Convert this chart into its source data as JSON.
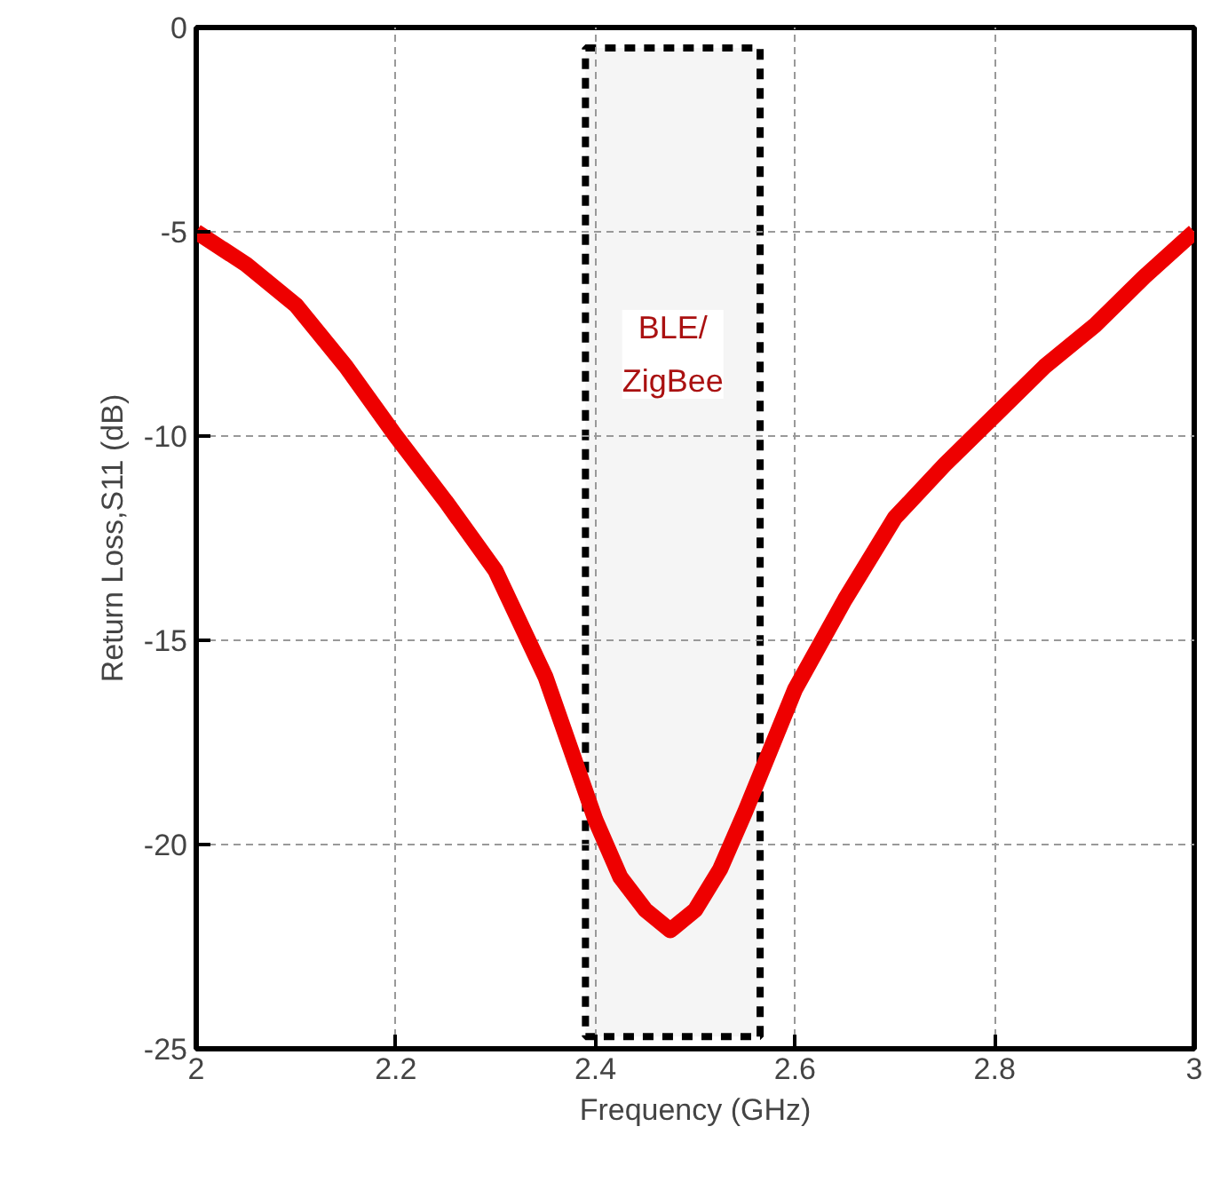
{
  "chart_data": {
    "type": "line",
    "xlabel": "Frequency (GHz)",
    "ylabel": "Return Loss,S11 (dB)",
    "x": [
      2.0,
      2.05,
      2.1,
      2.15,
      2.2,
      2.25,
      2.3,
      2.35,
      2.4,
      2.425,
      2.45,
      2.475,
      2.5,
      2.525,
      2.55,
      2.6,
      2.65,
      2.7,
      2.75,
      2.8,
      2.85,
      2.9,
      2.95,
      3.0
    ],
    "series": [
      {
        "color": "#ee0000",
        "values": [
          -5,
          -5.8,
          -6.8,
          -8.3,
          -10,
          -11.6,
          -13.3,
          -15.9,
          -19.4,
          -20.8,
          -21.6,
          -22.1,
          -21.6,
          -20.6,
          -19.2,
          -16.2,
          -14.0,
          -12.0,
          -10.7,
          -9.5,
          -8.3,
          -7.3,
          -6.1,
          -5
        ]
      }
    ],
    "xlim": [
      2,
      3
    ],
    "xticks": [
      2,
      2.2,
      2.4,
      2.6,
      2.8,
      3
    ],
    "ylim": [
      -25,
      0
    ],
    "yticks": [
      -25,
      -20,
      -15,
      -10,
      -5,
      0
    ],
    "grid": true,
    "marker": "none",
    "line_style": "solid",
    "bands": [
      {
        "axis": "x",
        "from": 2.39,
        "to": 2.565,
        "label": "BLE/\nZigBee",
        "color": "#000000"
      }
    ]
  }
}
